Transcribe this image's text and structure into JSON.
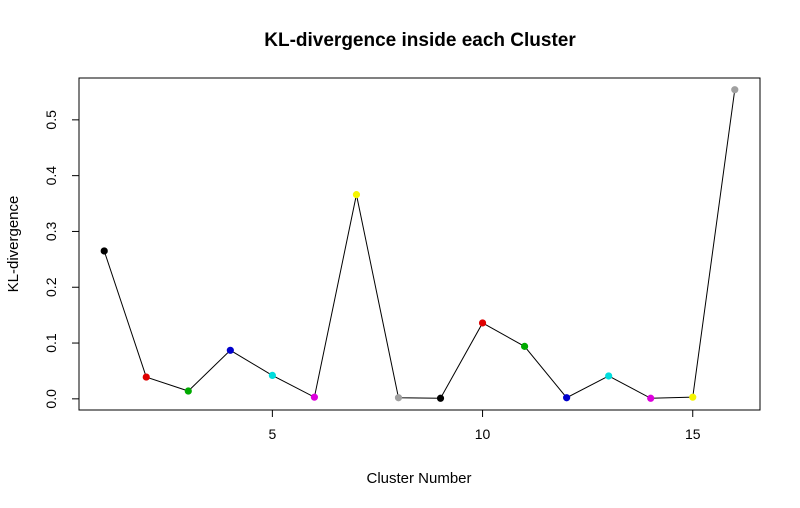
{
  "chart_data": {
    "type": "line",
    "title": "KL-divergence inside each Cluster",
    "xlabel": "Cluster Number",
    "ylabel": "KL-divergence",
    "xlim": [
      0.4,
      16.6
    ],
    "ylim": [
      -0.02,
      0.575
    ],
    "x_ticks": [
      5,
      10,
      15
    ],
    "y_ticks": [
      0.0,
      0.1,
      0.2,
      0.3,
      0.4,
      0.5
    ],
    "y_tick_labels": [
      "0.0",
      "0.1",
      "0.2",
      "0.3",
      "0.4",
      "0.5"
    ],
    "grid": false,
    "x": [
      1,
      2,
      3,
      4,
      5,
      6,
      7,
      8,
      9,
      10,
      11,
      12,
      13,
      14,
      15,
      16
    ],
    "values": [
      0.265,
      0.039,
      0.014,
      0.087,
      0.042,
      0.003,
      0.366,
      0.002,
      0.001,
      0.136,
      0.094,
      0.002,
      0.041,
      0.001,
      0.003,
      0.554
    ],
    "point_colors": [
      "#000000",
      "#DF0000",
      "#00AA00",
      "#0000CC",
      "#00DDDD",
      "#DD00DD",
      "#F5F500",
      "#A0A0A0",
      "#000000",
      "#DF0000",
      "#00AA00",
      "#0000CC",
      "#00DDDD",
      "#DD00DD",
      "#F5F500",
      "#A0A0A0"
    ],
    "line_color": "#000000"
  }
}
